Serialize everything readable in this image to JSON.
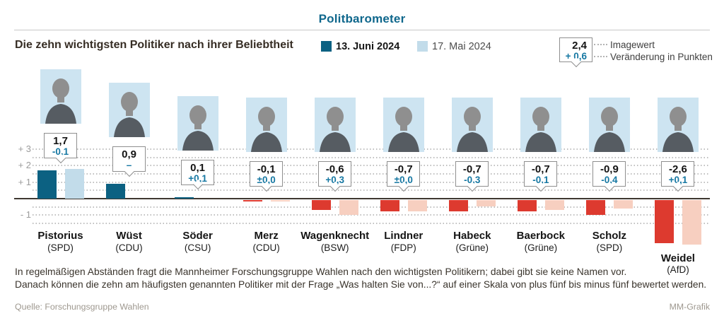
{
  "header": {
    "title": "Politbarometer"
  },
  "subtitle": "Die zehn wichtigsten Politiker nach ihrer Beliebtheit",
  "legend": {
    "current": {
      "label": "13. Juni 2024"
    },
    "previous": {
      "label": "17. Mai 2024"
    },
    "example": {
      "value": "2,4",
      "change": "+ 0,6",
      "value_label": "Imagewert",
      "change_label": "Veränderung in Punkten"
    }
  },
  "colors": {
    "accent_teal": "#0f678c",
    "bar_current_positive": "#0c6182",
    "bar_previous_positive": "#c2dcea",
    "bar_current_negative": "#dd3a2f",
    "bar_previous_negative": "#f7cfc0",
    "change_text": "#1577a2",
    "photo_background": "#cde4f1"
  },
  "chart_data": {
    "type": "bar",
    "title": "Die zehn wichtigsten Politiker nach ihrer Beliebtheit",
    "ylabel": "Imagewert (Skala von plus fünf bis minus fünf)",
    "ylim": [
      -3,
      3.5
    ],
    "grid": "dotted horizontal lines every 0.5",
    "legend_position": "top",
    "axis_ticks": [
      {
        "value": 3,
        "label": "+ 3"
      },
      {
        "value": 2,
        "label": "+ 2"
      },
      {
        "value": 1,
        "label": "+ 1"
      },
      {
        "value": -1,
        "label": "- 1"
      }
    ],
    "series": [
      {
        "name": "13. Juni 2024",
        "color": "#0c6182"
      },
      {
        "name": "17. Mai 2024",
        "color": "#c2dcea"
      }
    ],
    "politicians": [
      {
        "name": "Pistorius",
        "party": "(SPD)",
        "value": 1.7,
        "previous": 1.8,
        "value_label": "1,7",
        "change_label": "-0,1"
      },
      {
        "name": "Wüst",
        "party": "(CDU)",
        "value": 0.9,
        "previous": null,
        "value_label": "0,9",
        "change_label": "–"
      },
      {
        "name": "Söder",
        "party": "(CSU)",
        "value": 0.1,
        "previous": 0.0,
        "value_label": "0,1",
        "change_label": "+0,1"
      },
      {
        "name": "Merz",
        "party": "(CDU)",
        "value": -0.1,
        "previous": -0.1,
        "value_label": "-0,1",
        "change_label": "±0,0"
      },
      {
        "name": "Wagenknecht",
        "party": "(BSW)",
        "value": -0.6,
        "previous": -0.9,
        "value_label": "-0,6",
        "change_label": "+0,3"
      },
      {
        "name": "Lindner",
        "party": "(FDP)",
        "value": -0.7,
        "previous": -0.7,
        "value_label": "-0,7",
        "change_label": "±0,0"
      },
      {
        "name": "Habeck",
        "party": "(Grüne)",
        "value": -0.7,
        "previous": -0.4,
        "value_label": "-0,7",
        "change_label": "-0,3"
      },
      {
        "name": "Baerbock",
        "party": "(Grüne)",
        "value": -0.7,
        "previous": -0.6,
        "value_label": "-0,7",
        "change_label": "-0,1"
      },
      {
        "name": "Scholz",
        "party": "(SPD)",
        "value": -0.9,
        "previous": -0.5,
        "value_label": "-0,9",
        "change_label": "-0,4"
      },
      {
        "name": "Weidel",
        "party": "(AfD)",
        "value": -2.6,
        "previous": -2.7,
        "value_label": "-2,6",
        "change_label": "+0,1"
      }
    ]
  },
  "footer": {
    "line1": "In regelmäßigen Abständen fragt die Mannheimer Forschungsgruppe Wahlen nach den wichtigsten Politikern; dabei gibt sie keine Namen vor.",
    "line2": "Danach können die zehn am häufigsten genannten Politiker mit der Frage „Was halten Sie von...?“ auf einer Skala von plus fünf bis minus fünf bewertet werden.",
    "source": "Quelle: Forschungsgruppe Wahlen",
    "credit": "MM-Grafik"
  }
}
